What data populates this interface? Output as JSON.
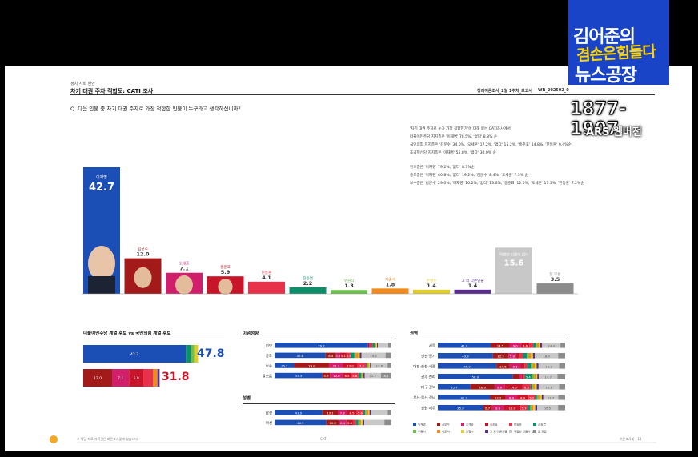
{
  "logo": {
    "line1": "김어준의",
    "line2": "겸손은힘들다",
    "line3": "뉴스공장",
    "line4": "1877-1907",
    "line5": "ARS 웹버전"
  },
  "header": {
    "category": "정치 사회 현안",
    "title": "차기 대권 주자 적합도: CATI 조사",
    "report_label": "정례여론조사_2월 1주차_보고서",
    "report_code": "WR_202502_0",
    "question": "Q. 다음 인물 중 차기 대권 주자로 가장 적합한 인물이 누구라고 생각하십니까?"
  },
  "notes": [
    "'차기 대권 주자로 누가 가장 적합한가'에 대해 묻는 CATI조사에서",
    "더불어민주당 지지층은 '이재명' 78.5%, '없다' 8.8% 순",
    "국민의힘 지지층은 '김문수' 34.0%, '오세훈' 17.2%, '없다' 15.2%, '홍준표' 14.8%, '한동훈' 9.4%순",
    "조국혁신당 지지층은 '이재명' 55.8%, '없다' 30.0% 순",
    "",
    "진보층은 '이재명' 79.2%, '없다' 8.7%순",
    "중도층은 '이재명' 40.8%, '없다' 19.2%, '김문수' 8.4%, '오세훈' 7.3% 순",
    "보수층은 '김문수' 29.0%, '이재명' 16.2%, '없다' 13.6%, '홍준표' 12.0%, '오세훈' 11.3%, '한동훈' 7.2%순"
  ],
  "chart_data": [
    {
      "type": "bar",
      "title": "차기 대권 주자 적합도: CATI 조사",
      "categories": [
        "이재명",
        "김문수",
        "오세훈",
        "홍준표",
        "한동훈",
        "김동연",
        "우원식",
        "이준석",
        "안철수",
        "그 외 다른인물",
        "적합한 인물이 없다",
        "잘 모름"
      ],
      "values": [
        42.7,
        12.0,
        7.1,
        5.9,
        4.1,
        2.2,
        1.3,
        1.8,
        1.4,
        1.4,
        15.6,
        3.5
      ],
      "colors": [
        "#1b4fb5",
        "#a31a1a",
        "#d11f6b",
        "#c9152a",
        "#e8314b",
        "#0e8f6b",
        "#6bbf4a",
        "#f08a1c",
        "#e0cc2a",
        "#5b2d8e",
        "#c8c8c8",
        "#8c8c8c"
      ],
      "ylim": [
        0,
        50
      ]
    },
    {
      "type": "bar",
      "title": "더불어민주당 계열 후보 vs 국민의힘 계열 후보",
      "categories": [
        "더불어민주당 계열",
        "국민의힘 계열"
      ],
      "values": [
        47.8,
        31.8
      ],
      "segments": [
        [
          42.7,
          2.2,
          1.3,
          1.6
        ],
        [
          12.0,
          7.1,
          5.9,
          4.1,
          1.8,
          0.9
        ]
      ],
      "colors": [
        [
          "#1b4fb5",
          "#0e8f6b",
          "#6bbf4a",
          "#e0cc2a"
        ],
        [
          "#a31a1a",
          "#d11f6b",
          "#c9152a",
          "#e8314b",
          "#f08a1c",
          "#5b2d8e"
        ]
      ]
    },
    {
      "type": "bar",
      "title": "이념성향",
      "stacked": true,
      "categories": [
        "진보",
        "중도",
        "보수",
        "잘모름"
      ],
      "series": [
        {
          "values": [
            79.2,
            40.8,
            16.2,
            37.3
          ]
        },
        {
          "values": [
            1.0,
            8.4,
            29.0,
            5.9
          ]
        },
        {
          "values": [
            0.9,
            3.3,
            11.3,
            10.0
          ]
        },
        {
          "values": [
            0.9,
            5.1,
            12.0,
            6.5
          ]
        },
        {
          "values": [
            0.8,
            3.3,
            7.2,
            5.6
          ]
        },
        {
          "values": [
            2.0,
            3.0,
            0.8,
            2.0
          ]
        },
        {
          "values": [
            0.7,
            1.0,
            0.5,
            0.8
          ]
        },
        {
          "values": [
            0.8,
            2.0,
            0.9,
            0.6
          ]
        },
        {
          "values": [
            0.5,
            1.3,
            0.9,
            0.5
          ]
        },
        {
          "values": [
            0.8,
            1.4,
            0.9,
            1.0
          ]
        },
        {
          "values": [
            8.7,
            19.2,
            13.6,
            12.7
          ]
        },
        {
          "values": [
            2.7,
            4.7,
            3.2,
            8.1
          ]
        }
      ],
      "labels": [
        [
          "79.2",
          "",
          "",
          "",
          "",
          "",
          "",
          "",
          "",
          "",
          "",
          ""
        ],
        [
          "40.8",
          "8.4",
          "3.3",
          "5.1",
          "3.3",
          "",
          "",
          "",
          "",
          "",
          "19.2",
          ""
        ],
        [
          "16.2",
          "29.0",
          "11.3",
          "12.0",
          "7.2",
          "",
          "",
          "",
          "",
          "",
          "13.6",
          ""
        ],
        [
          "37.3",
          "5.9",
          "10.0",
          "6.5",
          "5.6",
          "",
          "",
          "",
          "",
          "",
          "12.7",
          "8.1"
        ]
      ]
    },
    {
      "type": "bar",
      "title": "성별",
      "stacked": true,
      "categories": [
        "남성",
        "여성"
      ],
      "series": [
        {
          "values": [
            41.0,
            44.3
          ]
        },
        {
          "values": [
            13.1,
            10.8
          ]
        },
        {
          "values": [
            7.8,
            6.4
          ]
        },
        {
          "values": [
            8.5,
            5.6
          ]
        },
        {
          "values": [
            5.6,
            2.6
          ]
        },
        {
          "values": [
            1.5,
            2.0
          ]
        },
        {
          "values": [
            1.0,
            1.2
          ]
        },
        {
          "values": [
            1.6,
            1.2
          ]
        },
        {
          "values": [
            1.2,
            1.5
          ]
        },
        {
          "values": [
            1.6,
            1.2
          ]
        },
        {
          "values": [
            14.0,
            17.2
          ]
        },
        {
          "values": [
            3.1,
            6.0
          ]
        }
      ],
      "labels": [
        [
          "41.0",
          "13.1",
          "7.8",
          "8.5",
          "5.6",
          "",
          "",
          "",
          "",
          "",
          "",
          ""
        ],
        [
          "44.3",
          "10.8",
          "6.4",
          "5.6",
          "",
          "",
          "",
          "",
          "",
          "",
          "",
          ""
        ]
      ]
    },
    {
      "type": "bar",
      "title": "권역",
      "stacked": true,
      "categories": [
        "서울",
        "인천·경기",
        "대전·충청·세종",
        "광주·전라",
        "대구·경북",
        "부산·울산·경남",
        "강원·제주"
      ],
      "series": [
        {
          "values": [
            41.8,
            43.3,
            46.0,
            58.9,
            25.7,
            41.2,
            35.9
          ]
        },
        {
          "values": [
            14.5,
            12.2,
            10.5,
            5.0,
            18.9,
            12.2,
            6.7
          ]
        },
        {
          "values": [
            9.0,
            5.9,
            8.6,
            2.0,
            8.0,
            8.9,
            9.6
          ]
        },
        {
          "values": [
            6.6,
            3.0,
            3.0,
            1.5,
            14.0,
            8.9,
            13.0
          ]
        },
        {
          "values": [
            3.0,
            2.5,
            2.0,
            0.8,
            6.3,
            5.2,
            5.7
          ]
        },
        {
          "values": [
            2.0,
            3.0,
            3.0,
            5.4,
            1.0,
            1.5,
            2.0
          ]
        },
        {
          "values": [
            1.0,
            1.5,
            1.5,
            2.0,
            0.8,
            1.0,
            1.0
          ]
        },
        {
          "values": [
            1.5,
            1.8,
            1.5,
            1.5,
            1.5,
            1.5,
            1.5
          ]
        },
        {
          "values": [
            1.0,
            1.5,
            1.5,
            1.0,
            1.5,
            1.2,
            1.5
          ]
        },
        {
          "values": [
            1.5,
            1.5,
            1.5,
            1.2,
            1.5,
            1.3,
            1.5
          ]
        },
        {
          "values": [
            14.4,
            18.3,
            16.2,
            14.7,
            16.1,
            11.7,
            16.5
          ]
        },
        {
          "values": [
            3.7,
            5.5,
            4.7,
            6.0,
            4.7,
            5.4,
            5.6
          ]
        }
      ],
      "labels": [
        [
          "41.8",
          "14.5",
          "9.0",
          "6.6",
          "",
          "",
          "",
          "",
          "",
          "",
          "14.4",
          ""
        ],
        [
          "43.3",
          "12.2",
          "5.9",
          "",
          "",
          "",
          "",
          "",
          "",
          "",
          "18.3",
          ""
        ],
        [
          "46.0",
          "10.5",
          "8.6",
          "",
          "",
          "",
          "",
          "",
          "",
          "",
          "16.2",
          ""
        ],
        [
          "58.9",
          "",
          "",
          "",
          "",
          "5.4",
          "",
          "",
          "",
          "",
          "14.7",
          ""
        ],
        [
          "25.7",
          "18.9",
          "8.0",
          "14.0",
          "6.3",
          "",
          "",
          "",
          "",
          "",
          "16.1",
          ""
        ],
        [
          "41.2",
          "12.2",
          "8.9",
          "8.9",
          "5.2",
          "",
          "",
          "",
          "",
          "",
          "11.7",
          ""
        ],
        [
          "35.9",
          "6.7",
          "9.6",
          "13.0",
          "5.7",
          "",
          "",
          "",
          "",
          "",
          "16.5",
          ""
        ]
      ]
    }
  ],
  "sections": {
    "matchup_title": "더불어민주당 계열 후보  vs  국민의힘 계열 후보",
    "ideology_title": "이념성향",
    "gender_title": "성별",
    "region_title": "권역"
  },
  "legend": [
    "이재명",
    "김문수",
    "오세훈",
    "홍준표",
    "한동훈",
    "김동연",
    "우원식",
    "이준석",
    "안철수",
    "그 외 다른인물",
    "적합한 인물이 없다",
    "잘 모름"
  ],
  "footer": {
    "left": "※ 해당 자료 저작권은 여론조사꽃에 있습니다.",
    "center": "CATI",
    "right": "여론조사꽃  |  13"
  }
}
